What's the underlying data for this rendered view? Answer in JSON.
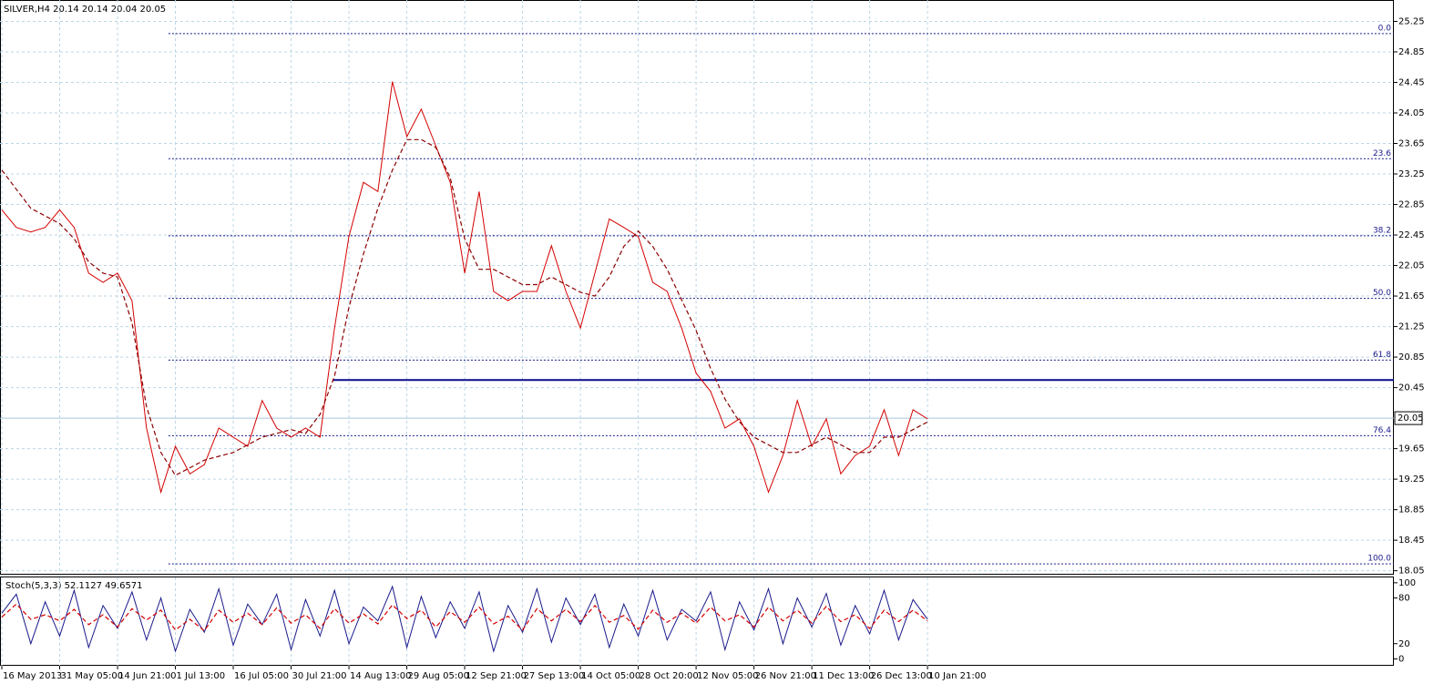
{
  "chart_data": [
    {
      "type": "line",
      "title": "SILVER,H4  20.14 20.14 20.04 20.05",
      "x": [
        0,
        0.25,
        0.5,
        0.75,
        1,
        1.25,
        1.5,
        1.75,
        2,
        2.25,
        2.5,
        2.75,
        3,
        3.25,
        3.5,
        3.75,
        4,
        4.25,
        4.5,
        4.75,
        5,
        5.25,
        5.5,
        5.75,
        6,
        6.25,
        6.5,
        6.75,
        7,
        7.25,
        7.5,
        7.75,
        8,
        8.25,
        8.5,
        8.75,
        9,
        9.25,
        9.5,
        9.75,
        10,
        10.25,
        10.5,
        10.75,
        11,
        11.25,
        11.5,
        11.75,
        12,
        12.25,
        12.5,
        12.75,
        13,
        13.25,
        13.5,
        13.75,
        14,
        14.25,
        14.5,
        14.75,
        15,
        15.25,
        15.5,
        15.75,
        16
      ],
      "xlim": [
        0,
        24.06
      ],
      "xticks": [
        {
          "value": 0,
          "label": "16 May 2013"
        },
        {
          "value": 1,
          "label": "31 May 05:00"
        },
        {
          "value": 2,
          "label": "14 Jun 21:00"
        },
        {
          "value": 3,
          "label": "1 Jul 13:00"
        },
        {
          "value": 4,
          "label": "16 Jul 05:00"
        },
        {
          "value": 5,
          "label": "30 Jul 21:00"
        },
        {
          "value": 6,
          "label": "14 Aug 13:00"
        },
        {
          "value": 7,
          "label": "29 Aug 05:00"
        },
        {
          "value": 8,
          "label": "12 Sep 21:00"
        },
        {
          "value": 9,
          "label": "27 Sep 13:00"
        },
        {
          "value": 10,
          "label": "14 Oct 05:00"
        },
        {
          "value": 11,
          "label": "28 Oct 20:00"
        },
        {
          "value": 12,
          "label": "12 Nov 05:00"
        },
        {
          "value": 13,
          "label": "26 Nov 21:00"
        },
        {
          "value": 14,
          "label": "11 Dec 13:00"
        },
        {
          "value": 15,
          "label": "26 Dec 13:00"
        },
        {
          "value": 16,
          "label": "10 Jan 21:00"
        }
      ],
      "ylim": [
        18.01,
        25.53
      ],
      "yticks": [
        18.05,
        18.45,
        18.85,
        19.25,
        19.65,
        20.45,
        20.85,
        21.25,
        21.65,
        22.05,
        22.45,
        22.85,
        23.25,
        23.65,
        24.05,
        24.45,
        24.85,
        25.25
      ],
      "grid": true,
      "series": [
        {
          "color": "#d40000",
          "values": [
            22.78,
            22.55,
            22.49,
            22.55,
            22.78,
            22.55,
            21.95,
            21.83,
            21.95,
            21.59,
            19.92,
            19.08,
            19.68,
            19.32,
            19.44,
            19.92,
            19.8,
            19.68,
            20.28,
            19.92,
            19.8,
            19.92,
            19.8,
            21.23,
            22.43,
            23.14,
            23.02,
            24.46,
            23.74,
            24.1,
            23.62,
            23.14,
            21.95,
            23.02,
            21.71,
            21.59,
            21.71,
            21.71,
            22.31,
            21.71,
            21.23,
            21.95,
            22.66,
            22.55,
            22.43,
            21.83,
            21.71,
            21.23,
            20.64,
            20.4,
            19.92,
            20.04,
            19.68,
            19.08,
            19.56,
            20.28,
            19.68,
            20.04,
            19.32,
            19.56,
            19.68,
            20.16,
            19.56,
            20.16,
            20.04
          ]
        },
        {
          "color": "#8b0000",
          "dash": true,
          "values": [
            23.3,
            23.05,
            22.8,
            22.7,
            22.6,
            22.4,
            22.1,
            21.95,
            21.9,
            21.3,
            20.2,
            19.6,
            19.3,
            19.4,
            19.5,
            19.55,
            19.6,
            19.7,
            19.8,
            19.85,
            19.9,
            19.85,
            20.1,
            20.6,
            21.5,
            22.2,
            22.8,
            23.3,
            23.7,
            23.7,
            23.6,
            23.2,
            22.4,
            22.0,
            22.0,
            21.9,
            21.8,
            21.8,
            21.9,
            21.8,
            21.7,
            21.65,
            21.9,
            22.3,
            22.5,
            22.3,
            22.0,
            21.6,
            21.2,
            20.7,
            20.3,
            20.0,
            19.8,
            19.7,
            19.6,
            19.6,
            19.7,
            19.8,
            19.7,
            19.6,
            19.6,
            19.8,
            19.8,
            19.9,
            20.0
          ]
        }
      ],
      "fib_start": 2.88,
      "fib_levels": [
        {
          "value": 25.09,
          "label": "0.0"
        },
        {
          "value": 23.45,
          "label": "23.6"
        },
        {
          "value": 22.44,
          "label": "38.2"
        },
        {
          "value": 21.62,
          "label": "50.0"
        },
        {
          "value": 20.81,
          "label": "61.8"
        },
        {
          "value": 19.82,
          "label": "76.4"
        },
        {
          "value": 18.14,
          "label": "100.0"
        }
      ],
      "support_start": 5.72,
      "support_level": 20.55,
      "last_price": 20.05
    },
    {
      "type": "line",
      "title": "Stoch(5,3,3) 52.1127 49.6571",
      "ylim": [
        -9,
        107
      ],
      "yticks": [
        0,
        20,
        80,
        100
      ],
      "series": [
        {
          "color": "#1a1a8c",
          "values": [
            60,
            85,
            20,
            75,
            30,
            90,
            15,
            70,
            40,
            88,
            25,
            80,
            10,
            65,
            35,
            92,
            18,
            72,
            45,
            85,
            12,
            78,
            30,
            90,
            20,
            68,
            50,
            95,
            15,
            82,
            28,
            75,
            40,
            88,
            10,
            70,
            35,
            92,
            22,
            80,
            45,
            85,
            15,
            72,
            30,
            90,
            25,
            65,
            50,
            88,
            12,
            75,
            38,
            92,
            20,
            80,
            42,
            86,
            18,
            70,
            33,
            90,
            25,
            78,
            52
          ]
        },
        {
          "color": "#d40000",
          "dash": true,
          "values": [
            55,
            72,
            52,
            58,
            50,
            65,
            45,
            58,
            42,
            66,
            51,
            64,
            38,
            52,
            37,
            64,
            48,
            60,
            45,
            67,
            47,
            58,
            40,
            66,
            47,
            59,
            46,
            71,
            53,
            64,
            42,
            62,
            48,
            68,
            46,
            56,
            38,
            66,
            50,
            65,
            49,
            70,
            48,
            57,
            39,
            64,
            48,
            60,
            47,
            68,
            50,
            58,
            42,
            68,
            50,
            64,
            47,
            69,
            49,
            58,
            40,
            64,
            49,
            64,
            50
          ]
        }
      ]
    }
  ]
}
